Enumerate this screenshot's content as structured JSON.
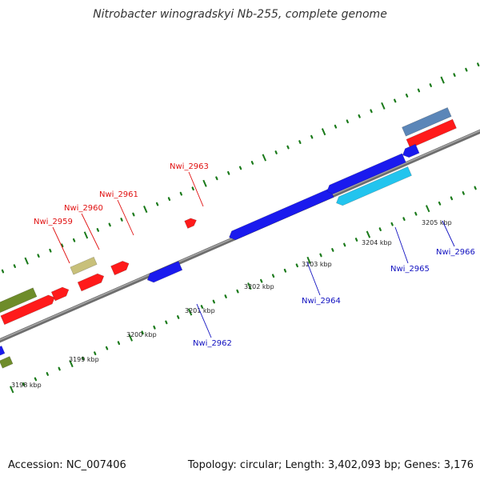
{
  "title": "Nitrobacter winogradskyi Nb-255, complete genome",
  "footer": {
    "accession": "Accession: NC_007406",
    "summary": "Topology: circular; Length: 3,402,093 bp; Genes: 3,176"
  },
  "colors": {
    "backbone": "#808080",
    "ticks": "#1a7a1a",
    "red": "#ff1a1a",
    "blue": "#1a1aee",
    "cyan": "#22c4ee",
    "olive": "#6e8c2a",
    "khaki": "#c8c07a",
    "steel": "#5b86b8",
    "label_red": "#e01010",
    "label_blue": "#1010c0"
  },
  "scale_labels": [
    "3198 kbp",
    "3199 kbp",
    "3200 kbp",
    "3201 kbp",
    "3202 kbp",
    "3203 kbp",
    "3204 kbp",
    "3205 kbp"
  ],
  "gene_labels": [
    {
      "text": "Nwi_2959",
      "color": "red"
    },
    {
      "text": "Nwi_2960",
      "color": "red"
    },
    {
      "text": "Nwi_2961",
      "color": "red"
    },
    {
      "text": "Nwi_2963",
      "color": "red"
    },
    {
      "text": "Nwi_2962",
      "color": "blue"
    },
    {
      "text": "Nwi_2964",
      "color": "blue"
    },
    {
      "text": "Nwi_2965",
      "color": "blue"
    },
    {
      "text": "Nwi_2966",
      "color": "blue"
    }
  ]
}
